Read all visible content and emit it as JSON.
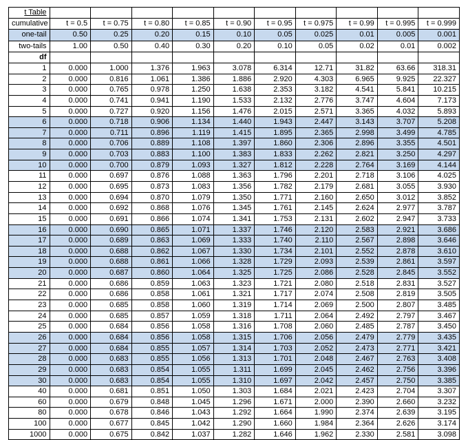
{
  "title": "t Table",
  "header_rows": [
    {
      "label": "cumulative prob.",
      "cells": [
        "t = 0.5",
        "t = 0.75",
        "t = 0.80",
        "t = 0.85",
        "t = 0.90",
        "t = 0.95",
        "t = 0.975",
        "t = 0.99",
        "t = 0.995",
        "t = 0.999"
      ],
      "shade": false
    },
    {
      "label": "one-tail",
      "cells": [
        "0.50",
        "0.25",
        "0.20",
        "0.15",
        "0.10",
        "0.05",
        "0.025",
        "0.01",
        "0.005",
        "0.001"
      ],
      "shade": true
    },
    {
      "label": "two-tails",
      "cells": [
        "1.00",
        "0.50",
        "0.40",
        "0.30",
        "0.20",
        "0.10",
        "0.05",
        "0.02",
        "0.01",
        "0.002"
      ],
      "shade": false
    }
  ],
  "df_label": "df",
  "rows": [
    {
      "df": "1",
      "v": [
        "0.000",
        "1.000",
        "1.376",
        "1.963",
        "3.078",
        "6.314",
        "12.71",
        "31.82",
        "63.66",
        "318.31"
      ],
      "shade": false
    },
    {
      "df": "2",
      "v": [
        "0.000",
        "0.816",
        "1.061",
        "1.386",
        "1.886",
        "2.920",
        "4.303",
        "6.965",
        "9.925",
        "22.327"
      ],
      "shade": false
    },
    {
      "df": "3",
      "v": [
        "0.000",
        "0.765",
        "0.978",
        "1.250",
        "1.638",
        "2.353",
        "3.182",
        "4.541",
        "5.841",
        "10.215"
      ],
      "shade": false
    },
    {
      "df": "4",
      "v": [
        "0.000",
        "0.741",
        "0.941",
        "1.190",
        "1.533",
        "2.132",
        "2.776",
        "3.747",
        "4.604",
        "7.173"
      ],
      "shade": false
    },
    {
      "df": "5",
      "v": [
        "0.000",
        "0.727",
        "0.920",
        "1.156",
        "1.476",
        "2.015",
        "2.571",
        "3.365",
        "4.032",
        "5.893"
      ],
      "shade": false
    },
    {
      "df": "6",
      "v": [
        "0.000",
        "0.718",
        "0.906",
        "1.134",
        "1.440",
        "1.943",
        "2.447",
        "3.143",
        "3.707",
        "5.208"
      ],
      "shade": true
    },
    {
      "df": "7",
      "v": [
        "0.000",
        "0.711",
        "0.896",
        "1.119",
        "1.415",
        "1.895",
        "2.365",
        "2.998",
        "3.499",
        "4.785"
      ],
      "shade": true
    },
    {
      "df": "8",
      "v": [
        "0.000",
        "0.706",
        "0.889",
        "1.108",
        "1.397",
        "1.860",
        "2.306",
        "2.896",
        "3.355",
        "4.501"
      ],
      "shade": true
    },
    {
      "df": "9",
      "v": [
        "0.000",
        "0.703",
        "0.883",
        "1.100",
        "1.383",
        "1.833",
        "2.262",
        "2.821",
        "3.250",
        "4.297"
      ],
      "shade": true
    },
    {
      "df": "10",
      "v": [
        "0.000",
        "0.700",
        "0.879",
        "1.093",
        "1.327",
        "1.812",
        "2.228",
        "2.764",
        "3.169",
        "4.144"
      ],
      "shade": true
    },
    {
      "df": "11",
      "v": [
        "0.000",
        "0.697",
        "0.876",
        "1.088",
        "1.363",
        "1.796",
        "2.201",
        "2.718",
        "3.106",
        "4.025"
      ],
      "shade": false
    },
    {
      "df": "12",
      "v": [
        "0.000",
        "0.695",
        "0.873",
        "1.083",
        "1.356",
        "1.782",
        "2.179",
        "2.681",
        "3.055",
        "3.930"
      ],
      "shade": false
    },
    {
      "df": "13",
      "v": [
        "0.000",
        "0.694",
        "0.870",
        "1.079",
        "1.350",
        "1.771",
        "2.160",
        "2.650",
        "3.012",
        "3.852"
      ],
      "shade": false
    },
    {
      "df": "14",
      "v": [
        "0.000",
        "0.692",
        "0.868",
        "1.076",
        "1.345",
        "1.761",
        "2.145",
        "2.624",
        "2.977",
        "3.787"
      ],
      "shade": false
    },
    {
      "df": "15",
      "v": [
        "0.000",
        "0.691",
        "0.866",
        "1.074",
        "1.341",
        "1.753",
        "2.131",
        "2.602",
        "2.947",
        "3.733"
      ],
      "shade": false
    },
    {
      "df": "16",
      "v": [
        "0.000",
        "0.690",
        "0.865",
        "1.071",
        "1.337",
        "1.746",
        "2.120",
        "2.583",
        "2.921",
        "3.686"
      ],
      "shade": true
    },
    {
      "df": "17",
      "v": [
        "0.000",
        "0.689",
        "0.863",
        "1.069",
        "1.333",
        "1.740",
        "2.110",
        "2.567",
        "2.898",
        "3.646"
      ],
      "shade": true
    },
    {
      "df": "18",
      "v": [
        "0.000",
        "0.688",
        "0.862",
        "1.067",
        "1.330",
        "1.734",
        "2.101",
        "2.552",
        "2.878",
        "3.610"
      ],
      "shade": true
    },
    {
      "df": "19",
      "v": [
        "0.000",
        "0.688",
        "0.861",
        "1.066",
        "1.328",
        "1.729",
        "2.093",
        "2.539",
        "2.861",
        "3.597"
      ],
      "shade": true
    },
    {
      "df": "20",
      "v": [
        "0.000",
        "0.687",
        "0.860",
        "1.064",
        "1.325",
        "1.725",
        "2.086",
        "2.528",
        "2.845",
        "3.552"
      ],
      "shade": true
    },
    {
      "df": "21",
      "v": [
        "0.000",
        "0.686",
        "0.859",
        "1.063",
        "1.323",
        "1.721",
        "2.080",
        "2.518",
        "2.831",
        "3.527"
      ],
      "shade": false
    },
    {
      "df": "22",
      "v": [
        "0.000",
        "0.686",
        "0.858",
        "1.061",
        "1.321",
        "1.717",
        "2.074",
        "2.508",
        "2.819",
        "3.505"
      ],
      "shade": false
    },
    {
      "df": "23",
      "v": [
        "0.000",
        "0.685",
        "0.858",
        "1.060",
        "1.319",
        "1.714",
        "2.069",
        "2.500",
        "2.807",
        "3.485"
      ],
      "shade": false
    },
    {
      "df": "24",
      "v": [
        "0.000",
        "0.685",
        "0.857",
        "1.059",
        "1.318",
        "1.711",
        "2.064",
        "2.492",
        "2.797",
        "3.467"
      ],
      "shade": false
    },
    {
      "df": "25",
      "v": [
        "0.000",
        "0.684",
        "0.856",
        "1.058",
        "1.316",
        "1.708",
        "2.060",
        "2.485",
        "2.787",
        "3.450"
      ],
      "shade": false
    },
    {
      "df": "26",
      "v": [
        "0.000",
        "0.684",
        "0.856",
        "1.058",
        "1.315",
        "1.706",
        "2.056",
        "2.479",
        "2.779",
        "3.435"
      ],
      "shade": true
    },
    {
      "df": "27",
      "v": [
        "0.000",
        "0.684",
        "0.855",
        "1.057",
        "1.314",
        "1.703",
        "2.052",
        "2.473",
        "2.771",
        "3.421"
      ],
      "shade": true
    },
    {
      "df": "28",
      "v": [
        "0.000",
        "0.683",
        "0.855",
        "1.056",
        "1.313",
        "1.701",
        "2.048",
        "2.467",
        "2.763",
        "3.408"
      ],
      "shade": true
    },
    {
      "df": "29",
      "v": [
        "0.000",
        "0.683",
        "0.854",
        "1.055",
        "1.311",
        "1.699",
        "2.045",
        "2.462",
        "2.756",
        "3.396"
      ],
      "shade": true
    },
    {
      "df": "30",
      "v": [
        "0.000",
        "0.683",
        "0.854",
        "1.055",
        "1.310",
        "1.697",
        "2.042",
        "2.457",
        "2.750",
        "3.385"
      ],
      "shade": true
    },
    {
      "df": "40",
      "v": [
        "0.000",
        "0.681",
        "0.851",
        "1.050",
        "1.303",
        "1.684",
        "2.021",
        "2.423",
        "2.704",
        "3.307"
      ],
      "shade": false
    },
    {
      "df": "60",
      "v": [
        "0.000",
        "0.679",
        "0.848",
        "1.045",
        "1.296",
        "1.671",
        "2.000",
        "2.390",
        "2.660",
        "3.232"
      ],
      "shade": false
    },
    {
      "df": "80",
      "v": [
        "0.000",
        "0.678",
        "0.846",
        "1.043",
        "1.292",
        "1.664",
        "1.990",
        "2.374",
        "2.639",
        "3.195"
      ],
      "shade": false
    },
    {
      "df": "100",
      "v": [
        "0.000",
        "0.677",
        "0.845",
        "1.042",
        "1.290",
        "1.660",
        "1.984",
        "2.364",
        "2.626",
        "3.174"
      ],
      "shade": false
    },
    {
      "df": "1000",
      "v": [
        "0.000",
        "0.675",
        "0.842",
        "1.037",
        "1.282",
        "1.646",
        "1.962",
        "2.330",
        "2.581",
        "3.098"
      ],
      "shade": false
    }
  ]
}
